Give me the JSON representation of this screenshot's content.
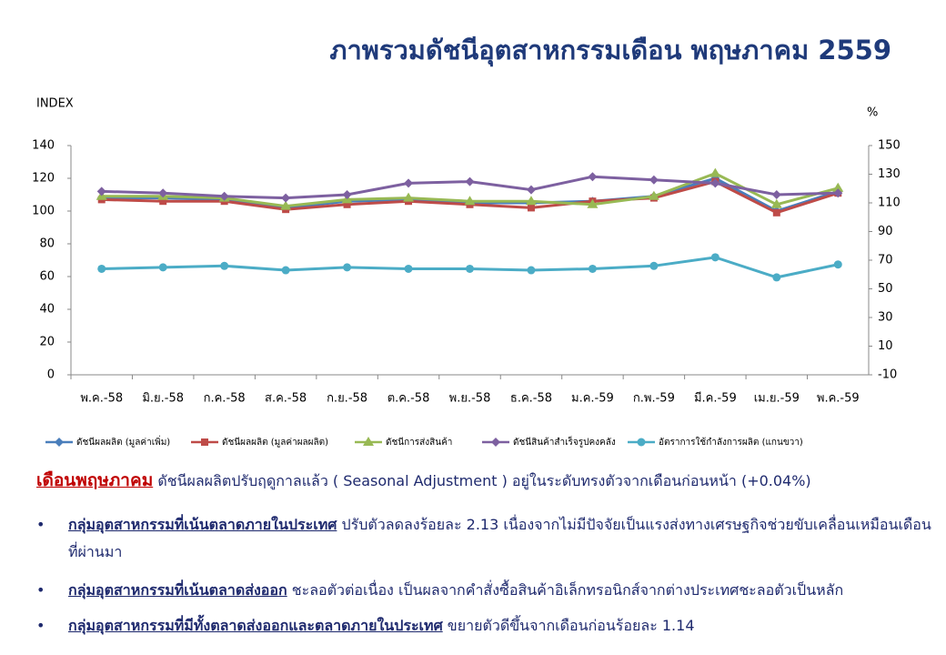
{
  "chart_data": {
    "type": "line",
    "title": "ภาพรวมดัชนีอุตสาหกรรมเดือน  พฤษภาคม  2559",
    "y_label": "INDEX",
    "y2_label": "%",
    "categories": [
      "พ.ค.-58",
      "มิ.ย.-58",
      "ก.ค.-58",
      "ส.ค.-58",
      "ก.ย.-58",
      "ต.ค.-58",
      "พ.ย.-58",
      "ธ.ค.-58",
      "ม.ค.-59",
      "ก.พ.-59",
      "มี.ค.-59",
      "เม.ย.-59",
      "พ.ค.-59"
    ],
    "ylim": [
      0,
      140
    ],
    "yticks": [
      0,
      20,
      40,
      60,
      80,
      100,
      120,
      140
    ],
    "y2lim": [
      -10,
      150
    ],
    "y2ticks": [
      -10,
      10,
      30,
      50,
      70,
      90,
      110,
      130,
      150
    ],
    "series": [
      {
        "name": "ดัชนีผลผลิต (มูลค่าเพิ่ม)",
        "color": "#4a7ebb",
        "marker": "diamond",
        "values": [
          108,
          108,
          107,
          102,
          106,
          107,
          105,
          105,
          106,
          109,
          120,
          100,
          112
        ]
      },
      {
        "name": "ดัชนีผลผลิต (มูลค่าผลผลิต)",
        "color": "#be4b48",
        "marker": "square",
        "values": [
          107,
          106,
          106,
          101,
          104,
          106,
          104,
          102,
          106,
          108,
          118,
          99,
          111
        ]
      },
      {
        "name": "ดัชนีการส่งสินค้า",
        "color": "#98b954",
        "marker": "triangle",
        "values": [
          109,
          109,
          108,
          103,
          107,
          108,
          106,
          106,
          104,
          109,
          123,
          104,
          114
        ]
      },
      {
        "name": "ดัชนีสินค้าสำเร็จรูปคงคลัง",
        "color": "#7d60a0",
        "marker": "diamond",
        "values": [
          112,
          111,
          109,
          108,
          110,
          117,
          118,
          113,
          121,
          119,
          117,
          110,
          111
        ]
      },
      {
        "name": "อัตราการใช้กำลังการผลิต (แกนขวา)",
        "color": "#4bacc6",
        "marker": "circle",
        "axis": "y2",
        "values": [
          64,
          65,
          66,
          63,
          65,
          64,
          64,
          63,
          64,
          66,
          72,
          58,
          67
        ]
      }
    ]
  },
  "text": {
    "lead": {
      "label": "เดือนพฤษภาคม",
      "body": "ดัชนีผลผลิตปรับฤดูกาลแล้ว  ( Seasonal Adjustment ) อยู่ในระดับทรงตัวจากเดือนก่อนหน้า  (+0.04%)"
    },
    "bullets": [
      {
        "label": "กลุ่มอุตสาหกรรมที่เน้นตลาดภายในประเทศ",
        "body": "  ปรับตัวลดลงร้อยละ  2.13  เนื่องจากไม่มีปัจจัยเป็นแรงส่งทางเศรษฐกิจช่วยขับเคลื่อนเหมือนเดือนที่ผ่านมา"
      },
      {
        "label": "กลุ่มอุตสาหกรรมที่เน้นตลาดส่งออก",
        "body": " ชะลอตัวต่อเนื่อง เป็นผลจากคำสั่งซื้อสินค้าอิเล็กทรอนิกส์จากต่างประเทศชะลอตัวเป็นหลัก"
      },
      {
        "label": "กลุ่มอุตสาหกรรมที่มีทั้งตลาดส่งออกและตลาดภายในประเทศ",
        "body": "  ขยายตัวดีขึ้นจากเดือนก่อนร้อยละ  1.14"
      }
    ]
  }
}
